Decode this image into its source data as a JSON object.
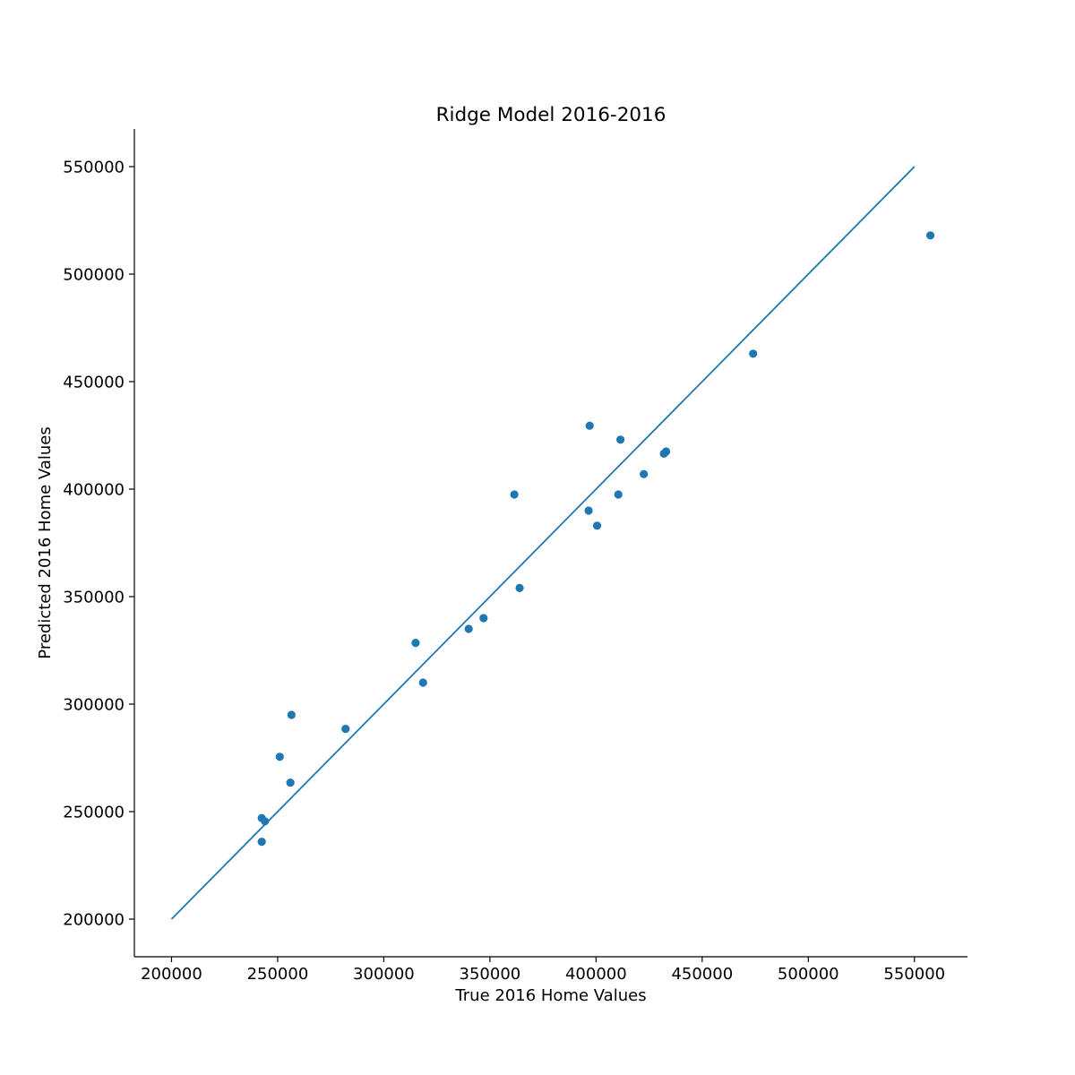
{
  "chart_data": {
    "type": "scatter",
    "title": "Ridge Model 2016-2016",
    "xlabel": "True 2016 Home Values",
    "ylabel": "Predicted 2016 Home Values",
    "xlim": [
      182500,
      575000
    ],
    "ylim": [
      182500,
      567500
    ],
    "xticks": [
      200000,
      250000,
      300000,
      350000,
      400000,
      450000,
      500000,
      550000
    ],
    "yticks": [
      200000,
      250000,
      300000,
      350000,
      400000,
      450000,
      500000,
      550000
    ],
    "grid": false,
    "colors": {
      "series": "#1f77b4",
      "axis": "#000000"
    },
    "series": [
      {
        "type": "scatter",
        "points": [
          [
            557500,
            518000
          ],
          [
            474000,
            463000
          ],
          [
            397000,
            429500
          ],
          [
            411500,
            423000
          ],
          [
            433000,
            417500
          ],
          [
            432000,
            416500
          ],
          [
            422500,
            407000
          ],
          [
            361500,
            397500
          ],
          [
            410500,
            397500
          ],
          [
            396500,
            390000
          ],
          [
            400500,
            383000
          ],
          [
            364000,
            354000
          ],
          [
            347000,
            340000
          ],
          [
            340000,
            335000
          ],
          [
            315000,
            328500
          ],
          [
            318500,
            310000
          ],
          [
            256500,
            295000
          ],
          [
            282000,
            288500
          ],
          [
            251000,
            275500
          ],
          [
            256000,
            263500
          ],
          [
            242500,
            247000
          ],
          [
            244000,
            245500
          ],
          [
            242500,
            236000
          ]
        ]
      },
      {
        "type": "line",
        "points": [
          [
            200000,
            200000
          ],
          [
            550000,
            550000
          ]
        ]
      }
    ]
  }
}
